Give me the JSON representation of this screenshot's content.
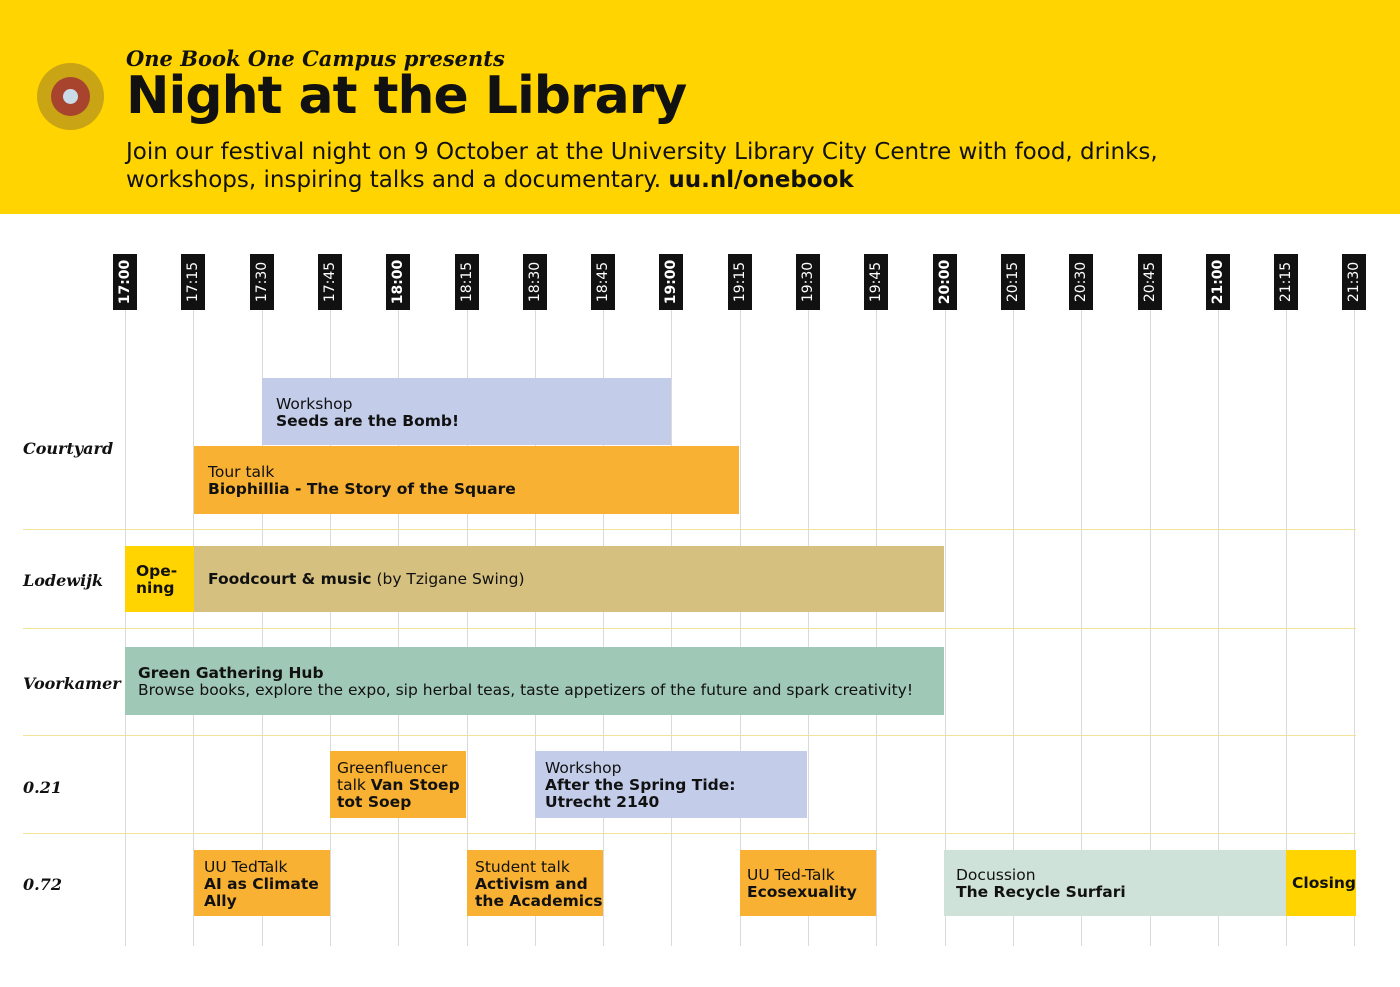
{
  "header": {
    "presents": "One Book One Campus presents",
    "title": "Night at the Library",
    "description": "Join our festival night on 9 October at the University Library City Centre with food, drinks, workshops, inspiring talks and a documentary.",
    "link": "uu.nl/onebook"
  },
  "times": [
    "17:00",
    "17:15",
    "17:30",
    "17:45",
    "18:00",
    "18:15",
    "18:30",
    "18:45",
    "19:00",
    "19:15",
    "19:30",
    "19:45",
    "20:00",
    "20:15",
    "20:30",
    "20:45",
    "21:00",
    "21:15",
    "21:30"
  ],
  "rooms": [
    "Courtyard",
    "Lodewijk",
    "Voorkamer",
    "0.21",
    "0.72"
  ],
  "events": {
    "seeds": {
      "kind": "Workshop",
      "title": "Seeds are the Bomb!"
    },
    "biophillia": {
      "kind": "Tour talk",
      "title": "Biophillia - The Story of the Square"
    },
    "opening": {
      "title1": "Ope-",
      "title2": "ning"
    },
    "foodcourt": {
      "title": "Foodcourt & music",
      "note": "(by Tzigane Swing)"
    },
    "hub": {
      "title": "Green Gathering Hub",
      "text": "Browse books, explore the expo, sip herbal teas, taste appetizers of the future and spark creativity!"
    },
    "greenfluencer": {
      "line1": "Greenfluencer",
      "line2_plain": "talk",
      "line2_bold": "Van Stoep",
      "line3": "tot Soep"
    },
    "springtide": {
      "kind": "Workshop",
      "line1": "After the Spring Tide:",
      "line2": "Utrecht 2140"
    },
    "aiclimate": {
      "kind": "UU TedTalk",
      "line1": "AI as Climate",
      "line2": "Ally"
    },
    "activism": {
      "kind": "Student talk",
      "line1": "Activism and",
      "line2": "the Academics"
    },
    "ecosexuality": {
      "kind": "UU Ted-Talk",
      "title": "Ecosexuality"
    },
    "recycle": {
      "kind": "Docussion",
      "title": "The Recycle Surfari"
    },
    "closing": {
      "title": "Closing"
    }
  },
  "colors": {
    "header_bg": "#FFD400",
    "workshop_blue": "#C3CDEA",
    "talk_orange": "#F8B133",
    "food_tan": "#D5C07F",
    "hub_green": "#A0C8B6",
    "docussion_green": "#CFE2D9"
  }
}
